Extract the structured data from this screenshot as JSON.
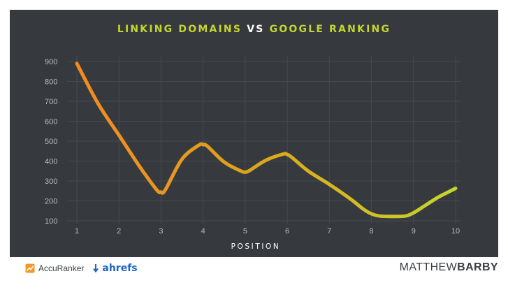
{
  "title": {
    "part1": "LINKING DOMAINS",
    "part2": "VS",
    "part3": "GOOGLE RANKING"
  },
  "colors": {
    "background": "#363a3e",
    "accent": "#c5d52f",
    "line_start": "#f28a24",
    "line_mid": "#dfa21c",
    "line_end": "#c5d52f"
  },
  "chart_data": {
    "type": "line",
    "title": "LINKING DOMAINS VS GOOGLE RANKING",
    "xlabel": "POSITION",
    "ylabel": "",
    "x": [
      1,
      2,
      3,
      4,
      5,
      6,
      7,
      8,
      9,
      10
    ],
    "x_ticks": [
      "1",
      "2",
      "3",
      "4",
      "5",
      "6",
      "7",
      "8",
      "9",
      "10"
    ],
    "y_ticks": [
      "900",
      "800",
      "700",
      "600",
      "500",
      "400",
      "300",
      "200",
      "100"
    ],
    "xlim": [
      1,
      10
    ],
    "ylim": [
      100,
      900
    ],
    "grid": true,
    "legend": "none",
    "series": [
      {
        "x": [
          1,
          1.5,
          2,
          2.5,
          2.9,
          3.0,
          3.1,
          3.5,
          3.9,
          4.0,
          4.1,
          4.5,
          4.9,
          5.0,
          5.1,
          5.5,
          5.9,
          6.0,
          6.1,
          6.5,
          7.0,
          7.5,
          7.8,
          8.0,
          8.2,
          8.5,
          8.8,
          9.0,
          9.3,
          9.6,
          10.0
        ],
        "y": [
          890,
          690,
          530,
          370,
          255,
          245,
          255,
          410,
          480,
          482,
          475,
          395,
          350,
          345,
          352,
          405,
          435,
          433,
          420,
          350,
          283,
          210,
          160,
          135,
          124,
          122,
          124,
          140,
          180,
          220,
          263
        ]
      }
    ]
  },
  "footer": {
    "accuranker": "AccuRanker",
    "ahrefs": "ahrefs",
    "author_light": "MATTHEW",
    "author_bold": "BARBY"
  }
}
